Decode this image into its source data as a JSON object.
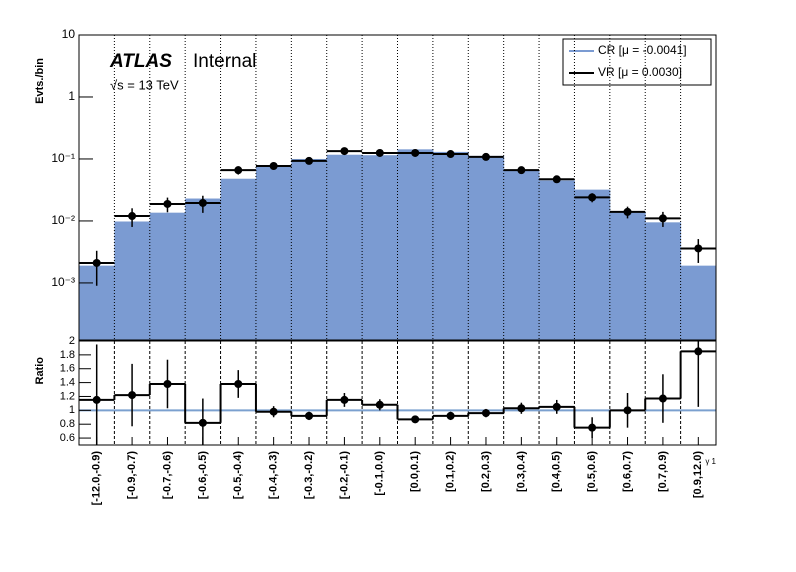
{
  "chart_data": [
    {
      "type": "hist-log",
      "ylabel": "Evts./bin",
      "experiment": "ATLAS",
      "status": "Internal",
      "energy": "√s = 13 TeV",
      "log_y": true,
      "grid": true,
      "legend": "upper right",
      "ylim": [
        0.00012,
        10
      ],
      "yticks": [
        10,
        1,
        {
          "value": 0.1,
          "label": "10⁻¹"
        },
        {
          "value": 0.01,
          "label": "10⁻²"
        },
        {
          "value": 0.001,
          "label": "10⁻³"
        }
      ],
      "series": [
        {
          "name": "CR [μ = -0.0041]",
          "color": "#7b9bd2",
          "values": [
            0.0019,
            0.0098,
            0.0136,
            0.023,
            0.048,
            0.078,
            0.1,
            0.117,
            0.115,
            0.143,
            0.13,
            0.112,
            0.064,
            0.045,
            0.032,
            0.014,
            0.0095,
            0.0019
          ]
        },
        {
          "name": "VR [μ = 0.0030]",
          "color": "#000000",
          "values": [
            0.0021,
            0.012,
            0.0188,
            0.0195,
            0.066,
            0.077,
            0.093,
            0.134,
            0.125,
            0.125,
            0.12,
            0.108,
            0.066,
            0.047,
            0.024,
            0.014,
            0.011,
            0.0036
          ],
          "errors": [
            0.0012,
            0.004,
            0.005,
            0.006,
            0.01,
            0.006,
            0.005,
            0.01,
            0.008,
            0.006,
            0.007,
            0.006,
            0.005,
            0.004,
            0.004,
            0.003,
            0.003,
            0.0015
          ]
        }
      ]
    },
    {
      "type": "ratio",
      "ylabel": "Ratio",
      "xlabel": "γ 1",
      "categories": [
        "[-12.0,-0.9)",
        "[-0.9,-0.7)",
        "[-0.7,-0.6)",
        "[-0.6,-0.5)",
        "[-0.5,-0.4)",
        "[-0.4,-0.3)",
        "[-0.3,-0.2)",
        "[-0.2,-0.1)",
        "[-0.1,0.0)",
        "[0.0,0.1)",
        "[0.1,0.2)",
        "[0.2,0.3)",
        "[0.3,0.4)",
        "[0.4,0.5)",
        "[0.5,0.6)",
        "[0.6,0.7)",
        "[0.7,0.9)",
        "[0.9,12.0)"
      ],
      "ylim": [
        0.5,
        2
      ],
      "yticks": [
        0.6,
        0.8,
        1,
        1.2,
        1.4,
        1.6,
        1.8,
        2
      ],
      "reference": 1,
      "reference_color": "#7ba0cf",
      "grid": true,
      "values": [
        1.15,
        1.22,
        1.38,
        0.82,
        1.38,
        0.98,
        0.92,
        1.15,
        1.08,
        0.87,
        0.92,
        0.96,
        1.03,
        1.05,
        0.75,
        1.0,
        1.17,
        1.85
      ],
      "errors": [
        0.8,
        0.45,
        0.35,
        0.35,
        0.2,
        0.08,
        0.06,
        0.1,
        0.08,
        0.05,
        0.06,
        0.06,
        0.08,
        0.1,
        0.15,
        0.25,
        0.35,
        0.8
      ],
      "color": "#000000"
    }
  ]
}
